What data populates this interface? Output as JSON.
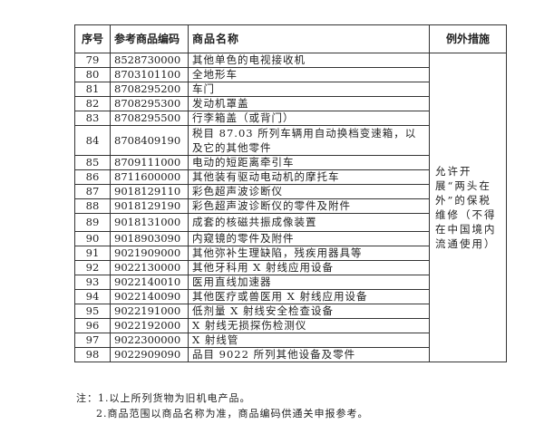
{
  "headers": [
    "序号",
    "参考商品编码",
    "商品名称",
    "例外措施"
  ],
  "rows": [
    {
      "no": "79",
      "code": "8528730000",
      "name": "其他单色的电视接收机"
    },
    {
      "no": "80",
      "code": "8703101100",
      "name": "全地形车"
    },
    {
      "no": "81",
      "code": "8708295200",
      "name": "车门"
    },
    {
      "no": "82",
      "code": "8708295300",
      "name": "发动机罩盖"
    },
    {
      "no": "83",
      "code": "8708295500",
      "name": "行李箱盖（或背门）"
    },
    {
      "no": "84",
      "code": "8708409190",
      "name": "税目 87.03 所列车辆用自动换档变速箱，以及它的其他零件"
    },
    {
      "no": "85",
      "code": "8709111000",
      "name": "电动的短距离牵引车"
    },
    {
      "no": "86",
      "code": "8711600000",
      "name": "其他装有驱动电动机的摩托车"
    },
    {
      "no": "87",
      "code": "9018129110",
      "name": "彩色超声波诊断仪"
    },
    {
      "no": "88",
      "code": "9018129190",
      "name": "彩色超声波诊断仪的零件及附件"
    },
    {
      "no": "89",
      "code": "9018131000",
      "name": "成套的核磁共振成像装置"
    },
    {
      "no": "90",
      "code": "9018903090",
      "name": "内窥镜的零件及附件"
    },
    {
      "no": "91",
      "code": "9021909000",
      "name": "其他弥补生理缺陷，残疾用器具等"
    },
    {
      "no": "92",
      "code": "9022130000",
      "name": "其他牙科用 X 射线应用设备"
    },
    {
      "no": "93",
      "code": "9022140010",
      "name": "医用直线加速器"
    },
    {
      "no": "94",
      "code": "9022140090",
      "name": "其他医疗或兽医用 X 射线应用设备"
    },
    {
      "no": "95",
      "code": "9022191000",
      "name": "低剂量 X 射线安全检查设备"
    },
    {
      "no": "96",
      "code": "9022192000",
      "name": "X 射线无损探伤检测仪"
    },
    {
      "no": "97",
      "code": "9022300000",
      "name": "X 射线管"
    },
    {
      "no": "98",
      "code": "9022909090",
      "name": "品目 9022 所列其他设备及零件"
    }
  ],
  "exception_measure": "允许开展“两头在外”的保税维修（不得在中国境内流通使用）",
  "notes": [
    "注：1.以上所列货物为旧机电产品。",
    "2.商品范围以商品名称为准，商品编码供通关申报参考。"
  ]
}
